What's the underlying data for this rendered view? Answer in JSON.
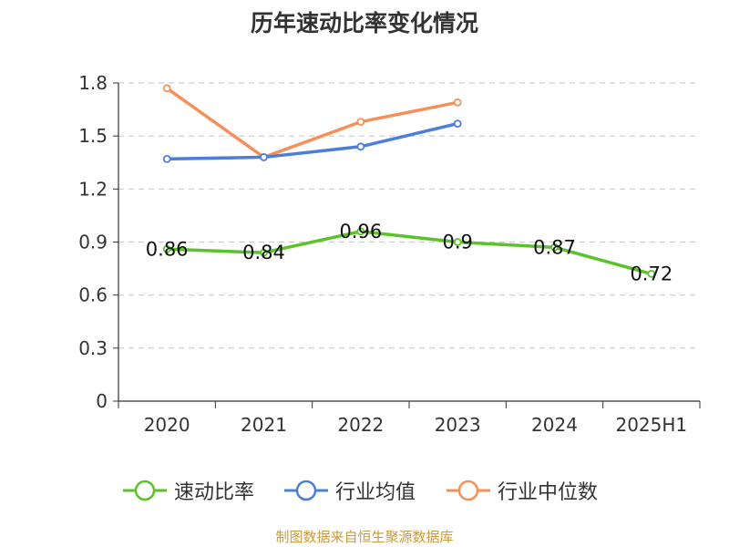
{
  "chart_data": {
    "type": "line",
    "title": "历年速动比率变化情况",
    "categories": [
      "2020",
      "2021",
      "2022",
      "2023",
      "2024",
      "2025H1"
    ],
    "y_ticks": [
      "0",
      "0.3",
      "0.6",
      "0.9",
      "1.2",
      "1.5",
      "1.8"
    ],
    "ylim": [
      0,
      1.8
    ],
    "grid": true,
    "legend_position": "bottom",
    "series": [
      {
        "name": "速动比率",
        "color": "#5cc22a",
        "values": [
          0.86,
          0.84,
          0.96,
          0.9,
          0.87,
          0.72
        ],
        "labels": [
          "0.86",
          "0.84",
          "0.96",
          "0.9",
          "0.87",
          "0.72"
        ]
      },
      {
        "name": "行业均值",
        "color": "#4d7fd9",
        "values": [
          1.37,
          1.38,
          1.44,
          1.57,
          null,
          null
        ]
      },
      {
        "name": "行业中位数",
        "color": "#f5905a",
        "values": [
          1.77,
          1.38,
          1.58,
          1.69,
          null,
          null
        ]
      }
    ]
  },
  "source": "制图数据来自恒生聚源数据库"
}
